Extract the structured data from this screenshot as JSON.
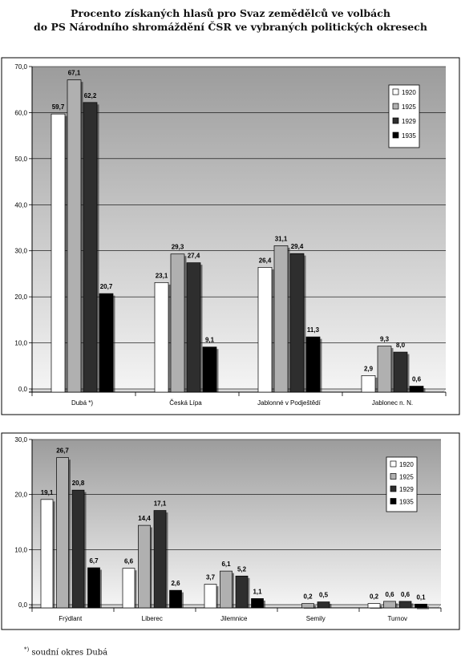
{
  "title": {
    "line1": "Procento získaných  hlasů pro Svaz zemědělců ve volbách",
    "line2": "do PS Národního shromáždění ČSR ve vybraných politických okresech"
  },
  "footnote": {
    "marker": "*)",
    "text": " soudní okres Dubá"
  },
  "colors": {
    "1920": "#ffffff",
    "1925": "#b0b0b0",
    "1929": "#2e2e2e",
    "1935": "#000000",
    "plot_bg_top": "#9c9c9c",
    "plot_bg_bottom": "#f4f4f4"
  },
  "chart_data": [
    {
      "type": "bar",
      "title": "",
      "xlabel": "",
      "ylabel": "",
      "ylim": [
        0,
        70
      ],
      "yticks": [
        "0,0",
        "10,0",
        "20,0",
        "30,0",
        "40,0",
        "50,0",
        "60,0",
        "70,0"
      ],
      "grid": true,
      "legend": "top-right",
      "categories": [
        "Dubá *)",
        "Česká Lípa",
        "Jablonné v Podještědí",
        "Jablonec n. N."
      ],
      "series": [
        {
          "name": "1920",
          "values": [
            59.7,
            23.1,
            26.4,
            2.9
          ],
          "labels": [
            "59,7",
            "23,1",
            "26,4",
            "2,9"
          ]
        },
        {
          "name": "1925",
          "values": [
            67.1,
            29.3,
            31.1,
            9.3
          ],
          "labels": [
            "67,1",
            "29,3",
            "31,1",
            "9,3"
          ]
        },
        {
          "name": "1929",
          "values": [
            62.2,
            27.4,
            29.4,
            8.0
          ],
          "labels": [
            "62,2",
            "27,4",
            "29,4",
            "8,0"
          ]
        },
        {
          "name": "1935",
          "values": [
            20.7,
            9.1,
            11.3,
            0.6
          ],
          "labels": [
            "20,7",
            "9,1",
            "11,3",
            "0,6"
          ]
        }
      ]
    },
    {
      "type": "bar",
      "title": "",
      "xlabel": "",
      "ylabel": "",
      "ylim": [
        0,
        30
      ],
      "yticks": [
        "0,0",
        "10,0",
        "20,0",
        "30,0"
      ],
      "grid": true,
      "legend": "top-right",
      "categories": [
        "Frýdlant",
        "Liberec",
        "Jilemnice",
        "Semily",
        "Turnov"
      ],
      "series": [
        {
          "name": "1920",
          "values": [
            19.1,
            6.6,
            3.7,
            0,
            0.2
          ],
          "labels": [
            "19,1",
            "6,6",
            "3,7",
            "",
            "0,2"
          ]
        },
        {
          "name": "1925",
          "values": [
            26.7,
            14.4,
            6.1,
            0.2,
            0.6
          ],
          "labels": [
            "26,7",
            "14,4",
            "6,1",
            "0,2",
            "0,6"
          ]
        },
        {
          "name": "1929",
          "values": [
            20.8,
            17.1,
            5.2,
            0.5,
            0.6
          ],
          "labels": [
            "20,8",
            "17,1",
            "5,2",
            "0,5",
            "0,6"
          ]
        },
        {
          "name": "1935",
          "values": [
            6.7,
            2.6,
            1.1,
            0,
            0.1
          ],
          "labels": [
            "6,7",
            "2,6",
            "1,1",
            "",
            "0,1"
          ]
        }
      ]
    }
  ]
}
